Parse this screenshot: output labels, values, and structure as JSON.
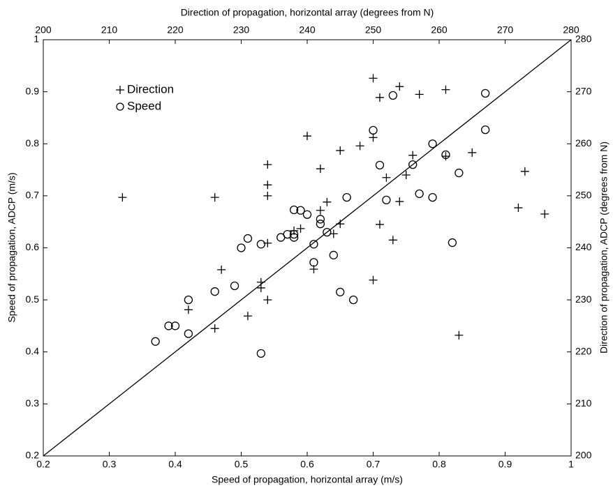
{
  "chart_data": {
    "type": "scatter",
    "xlabel": "Speed of propagation, horizontal array (m/s)",
    "ylabel": "Speed of propagation, ADCP (m/s)",
    "x2label": "Direction of propagation, horizontal array (degrees from N)",
    "y2label": "Direction of propagation, ADCP (degrees from N)",
    "xlim": [
      0.2,
      1
    ],
    "ylim": [
      0.2,
      1
    ],
    "x2lim": [
      200,
      280
    ],
    "y2lim": [
      200,
      280
    ],
    "xticks": [
      0.2,
      0.3,
      0.4,
      0.5,
      0.6,
      0.7,
      0.8,
      0.9,
      1
    ],
    "yticks": [
      0.2,
      0.3,
      0.4,
      0.5,
      0.6,
      0.7,
      0.8,
      0.9,
      1
    ],
    "x2ticks": [
      200,
      210,
      220,
      230,
      240,
      250,
      260,
      270,
      280
    ],
    "y2ticks": [
      200,
      210,
      220,
      230,
      240,
      250,
      260,
      270,
      280
    ],
    "reference_line": true,
    "series": [
      {
        "name": "Direction",
        "marker": "plus",
        "color": "#000000",
        "axis": "y2",
        "x": [
          212,
          226,
          222,
          226,
          227,
          231,
          234,
          234,
          233,
          233,
          234,
          234,
          234,
          238,
          239,
          240,
          241,
          242,
          242,
          243,
          244,
          245,
          245,
          248,
          250,
          250,
          250,
          251,
          251,
          252,
          253,
          254,
          254,
          255,
          256,
          257,
          261,
          261,
          263,
          265,
          272,
          273,
          276
        ],
        "values": [
          249.7,
          249.7,
          228.1,
          224.5,
          235.8,
          226.9,
          240.9,
          256,
          233.4,
          232.3,
          230,
          252.1,
          250,
          243.3,
          243.7,
          261.5,
          235.9,
          247.2,
          255.2,
          248.8,
          242.7,
          244.6,
          258.7,
          259.6,
          272.6,
          261.2,
          233.8,
          268.9,
          244.5,
          253.5,
          241.5,
          271,
          248.9,
          254,
          257.8,
          269.5,
          270.4,
          257.6,
          223.2,
          258.3,
          247.7,
          254.7,
          246.5
        ]
      },
      {
        "name": "Speed",
        "marker": "circle",
        "color": "#000000",
        "x": [
          0.37,
          0.39,
          0.4,
          0.42,
          0.42,
          0.46,
          0.49,
          0.5,
          0.51,
          0.53,
          0.53,
          0.56,
          0.57,
          0.58,
          0.58,
          0.58,
          0.59,
          0.6,
          0.61,
          0.61,
          0.62,
          0.62,
          0.63,
          0.64,
          0.65,
          0.66,
          0.67,
          0.7,
          0.71,
          0.73,
          0.77,
          0.72,
          0.76,
          0.79,
          0.79,
          0.81,
          0.83,
          0.82,
          0.87,
          0.87
        ],
        "values": [
          0.42,
          0.45,
          0.45,
          0.5,
          0.435,
          0.516,
          0.527,
          0.6,
          0.618,
          0.607,
          0.397,
          0.62,
          0.626,
          0.673,
          0.626,
          0.62,
          0.672,
          0.664,
          0.607,
          0.572,
          0.655,
          0.646,
          0.63,
          0.586,
          0.515,
          0.697,
          0.5,
          0.826,
          0.759,
          0.893,
          0.704,
          0.692,
          0.76,
          0.8,
          0.697,
          0.779,
          0.744,
          0.61,
          0.897,
          0.827
        ]
      }
    ]
  }
}
